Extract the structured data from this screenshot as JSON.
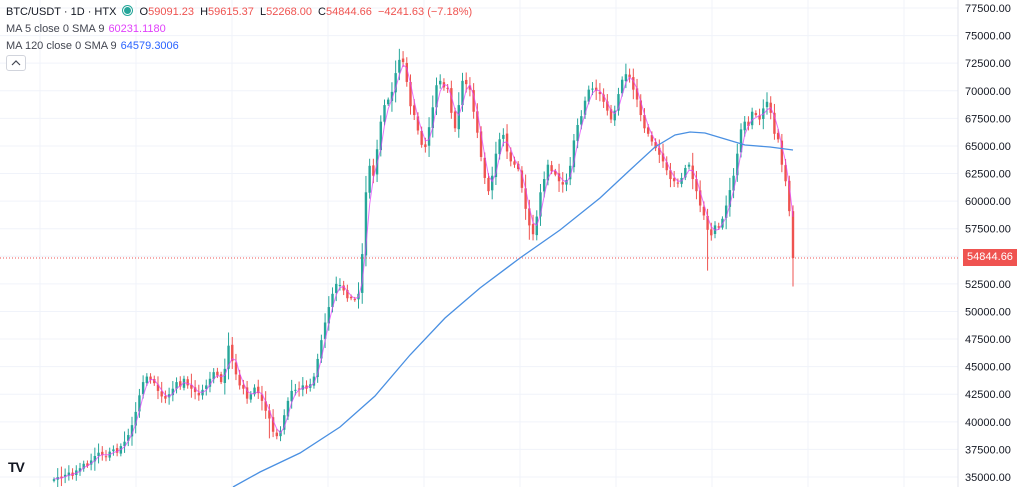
{
  "header": {
    "symbol": "BTC/USDT · 1D · HTX",
    "open_label": "O",
    "open_value": "59091.23",
    "high_label": "H",
    "high_value": "59615.37",
    "low_label": "L",
    "low_value": "52268.00",
    "close_label": "C",
    "close_value": "54844.66",
    "change": "−4241.63 (−7.18%)"
  },
  "indicators": {
    "ma5_label": "MA 5 close 0 SMA 9",
    "ma5_value": "60231.1180",
    "ma120_label": "MA 120 close 0 SMA 9",
    "ma120_value": "64579.3006"
  },
  "collapse_icon": "chevron-up-icon",
  "logo_text": "TV",
  "colors": {
    "up": "#26a69a",
    "down": "#ef5350",
    "ma5": "#e040fb",
    "ma120": "#4a90e2",
    "grid": "#f0f3fa",
    "axis_text": "#131722",
    "last_price_line": "#ef5350"
  },
  "chart_data": {
    "type": "candlestick",
    "title": "",
    "symbol": "BTC/USDT",
    "timeframe": "1D",
    "exchange": "HTX",
    "y_axis": {
      "side": "right",
      "ticks": [
        "77500.00",
        "75000.00",
        "72500.00",
        "70000.00",
        "67500.00",
        "65000.00",
        "62500.00",
        "60000.00",
        "57500.00",
        "55000.00",
        "52500.00",
        "50000.00",
        "47500.00",
        "45000.00",
        "42500.00",
        "40000.00",
        "37500.00",
        "35000.00"
      ],
      "ylim": [
        34600,
        78300
      ]
    },
    "grid": true,
    "last_price": 54844.66,
    "last_price_label": "54844.66",
    "ohlc_last": {
      "open": 59091.23,
      "high": 59615.37,
      "low": 52268.0,
      "close": 54844.66
    },
    "closes": [
      34800,
      35000,
      34900,
      35200,
      35400,
      35100,
      35600,
      35800,
      36200,
      36000,
      36500,
      36900,
      37200,
      37000,
      36800,
      37300,
      37500,
      37200,
      37800,
      38200,
      38800,
      39700,
      40900,
      42400,
      43600,
      44100,
      43800,
      43500,
      42800,
      42300,
      42100,
      42500,
      43000,
      43600,
      43200,
      43900,
      43300,
      43000,
      42700,
      42400,
      42900,
      43300,
      43900,
      44500,
      44200,
      43600,
      44800,
      46900,
      45500,
      44300,
      43300,
      43000,
      42100,
      42500,
      43100,
      42600,
      41900,
      41000,
      40300,
      39100,
      38700,
      39200,
      40600,
      41900,
      42800,
      42900,
      43000,
      43300,
      43000,
      43400,
      44100,
      45700,
      47400,
      49000,
      50400,
      51600,
      52500,
      52400,
      51900,
      51200,
      51200,
      51100,
      51600,
      55200,
      60800,
      63200,
      62300,
      64700,
      67200,
      68700,
      69200,
      69900,
      71600,
      72800,
      72600,
      70800,
      68600,
      67800,
      66400,
      65100,
      64900,
      66700,
      68500,
      70500,
      70900,
      70300,
      70200,
      68000,
      66600,
      68700,
      70900,
      70600,
      70100,
      68100,
      66200,
      64000,
      62100,
      60900,
      62300,
      64300,
      65600,
      66000,
      64500,
      63600,
      63300,
      62900,
      61200,
      59300,
      57800,
      57000,
      58600,
      60800,
      62000,
      63300,
      62700,
      62400,
      61800,
      61500,
      61900,
      63200,
      65500,
      66900,
      67700,
      69100,
      70100,
      70200,
      70000,
      69700,
      69000,
      68200,
      67400,
      68200,
      69700,
      71000,
      71500,
      71200,
      70100,
      69200,
      67800,
      66600,
      66100,
      65400,
      64800,
      64200,
      63600,
      62800,
      62000,
      61800,
      61600,
      62100,
      63000,
      63300,
      62000,
      60900,
      59600,
      58700,
      57400,
      56900,
      57800,
      57600,
      58400,
      59600,
      61000,
      62300,
      64300,
      66500,
      67200,
      66800,
      68100,
      67800,
      67400,
      68400,
      69000,
      68000,
      66100,
      65600,
      63300,
      61800,
      59091,
      54845
    ]
  }
}
